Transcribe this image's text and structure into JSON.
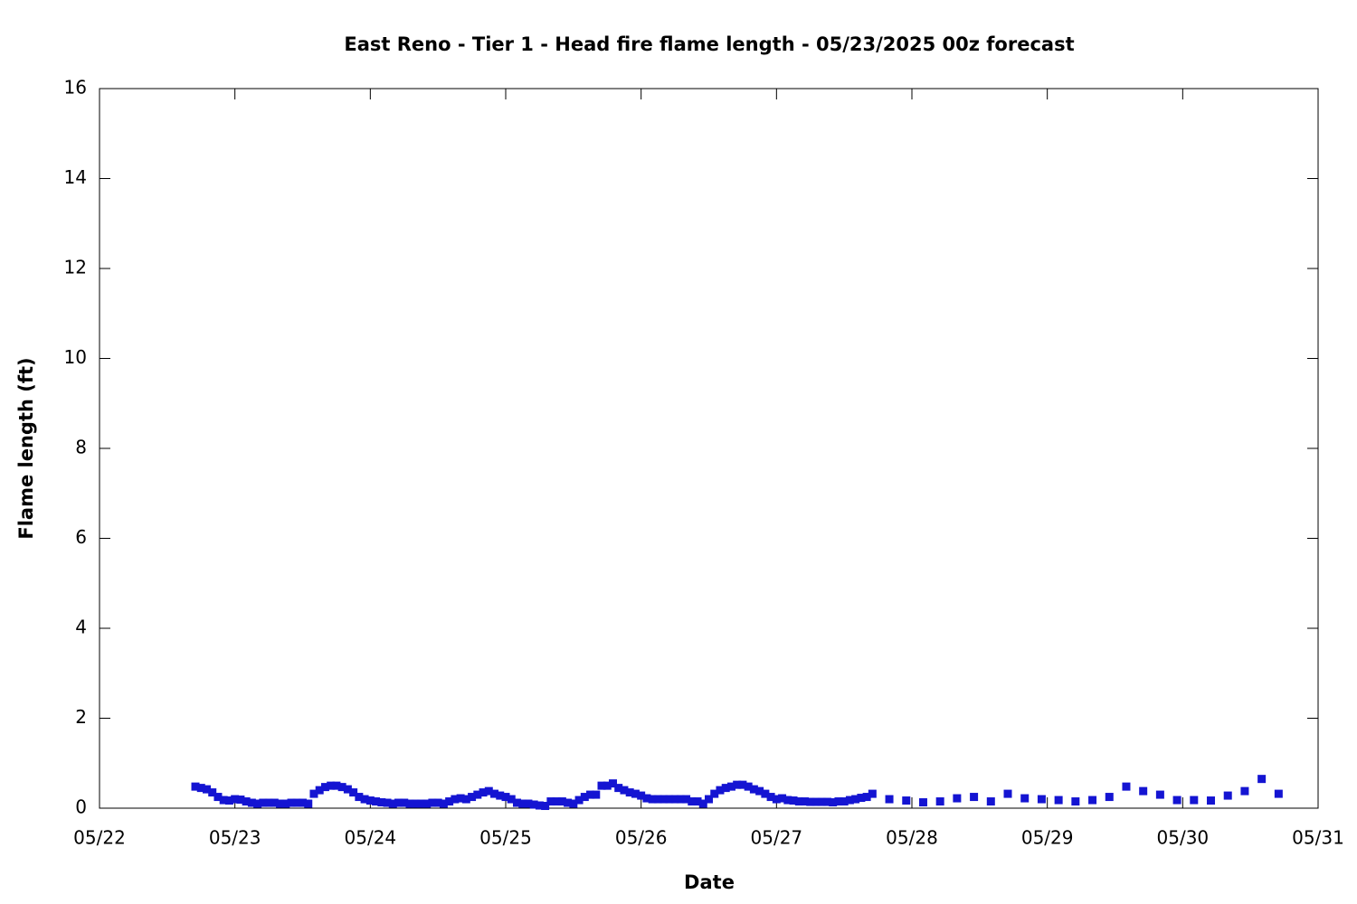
{
  "chart_data": {
    "type": "scatter",
    "title": "East Reno - Tier 1 - Head fire flame length - 05/23/2025 00z forecast",
    "x_label": "Date",
    "y_label": "Flame length (ft)",
    "xlim": [
      22,
      31
    ],
    "xticks": [
      {
        "value": 22,
        "label": "05/22"
      },
      {
        "value": 23,
        "label": "05/23"
      },
      {
        "value": 24,
        "label": "05/24"
      },
      {
        "value": 25,
        "label": "05/25"
      },
      {
        "value": 26,
        "label": "05/26"
      },
      {
        "value": 27,
        "label": "05/27"
      },
      {
        "value": 28,
        "label": "05/28"
      },
      {
        "value": 29,
        "label": "05/29"
      },
      {
        "value": 30,
        "label": "05/30"
      },
      {
        "value": 31,
        "label": "05/31"
      }
    ],
    "ylim": [
      0,
      16
    ],
    "yticks": [
      0,
      2,
      4,
      6,
      8,
      10,
      12,
      14,
      16
    ],
    "series": [
      {
        "color": "#1414d2",
        "x": [
          22.7083,
          22.75,
          22.7917,
          22.8333,
          22.875,
          22.9167,
          22.9583,
          23,
          23.0417,
          23.0833,
          23.125,
          23.1667,
          23.2083,
          23.25,
          23.2917,
          23.3333,
          23.375,
          23.4167,
          23.4583,
          23.5,
          23.5417,
          23.5833,
          23.625,
          23.6667,
          23.7083,
          23.75,
          23.7917,
          23.8333,
          23.875,
          23.9167,
          23.9583,
          24,
          24.0417,
          24.0833,
          24.125,
          24.1667,
          24.2083,
          24.25,
          24.2917,
          24.3333,
          24.375,
          24.4167,
          24.4583,
          24.5,
          24.5417,
          24.5833,
          24.625,
          24.6667,
          24.7083,
          24.75,
          24.7917,
          24.8333,
          24.875,
          24.9167,
          24.9583,
          25,
          25.0417,
          25.0833,
          25.125,
          25.1667,
          25.2083,
          25.25,
          25.2917,
          25.3333,
          25.375,
          25.4167,
          25.4583,
          25.5,
          25.5417,
          25.5833,
          25.625,
          25.6667,
          25.7083,
          25.75,
          25.7917,
          25.8333,
          25.875,
          25.9167,
          25.9583,
          26,
          26.0417,
          26.0833,
          26.125,
          26.1667,
          26.2083,
          26.25,
          26.2917,
          26.3333,
          26.375,
          26.4167,
          26.4583,
          26.5,
          26.5417,
          26.5833,
          26.625,
          26.6667,
          26.7083,
          26.75,
          26.7917,
          26.8333,
          26.875,
          26.9167,
          26.9583,
          27,
          27.0417,
          27.0833,
          27.125,
          27.1667,
          27.2083,
          27.25,
          27.2917,
          27.3333,
          27.375,
          27.4167,
          27.4583,
          27.5,
          27.5417,
          27.5833,
          27.625,
          27.6667,
          27.7083,
          27.8333,
          27.9583,
          28.0833,
          28.2083,
          28.3333,
          28.4583,
          28.5833,
          28.7083,
          28.8333,
          28.9583,
          29.0833,
          29.2083,
          29.3333,
          29.4583,
          29.5833,
          29.7083,
          29.8333,
          29.9583,
          30.0833,
          30.2083,
          30.3333,
          30.4583,
          30.5833,
          30.7083
        ],
        "values": [
          0.48,
          0.45,
          0.42,
          0.35,
          0.25,
          0.18,
          0.17,
          0.2,
          0.19,
          0.15,
          0.12,
          0.1,
          0.12,
          0.12,
          0.12,
          0.1,
          0.1,
          0.12,
          0.12,
          0.12,
          0.1,
          0.32,
          0.4,
          0.47,
          0.5,
          0.5,
          0.47,
          0.42,
          0.35,
          0.25,
          0.2,
          0.17,
          0.15,
          0.13,
          0.12,
          0.1,
          0.12,
          0.12,
          0.1,
          0.1,
          0.1,
          0.1,
          0.12,
          0.12,
          0.1,
          0.15,
          0.2,
          0.22,
          0.2,
          0.25,
          0.3,
          0.35,
          0.38,
          0.32,
          0.28,
          0.25,
          0.2,
          0.12,
          0.1,
          0.1,
          0.08,
          0.06,
          0.05,
          0.15,
          0.15,
          0.15,
          0.12,
          0.1,
          0.18,
          0.25,
          0.3,
          0.3,
          0.5,
          0.5,
          0.55,
          0.45,
          0.4,
          0.35,
          0.32,
          0.28,
          0.22,
          0.2,
          0.2,
          0.2,
          0.2,
          0.2,
          0.2,
          0.2,
          0.15,
          0.15,
          0.1,
          0.2,
          0.32,
          0.4,
          0.45,
          0.48,
          0.52,
          0.52,
          0.48,
          0.42,
          0.38,
          0.32,
          0.25,
          0.2,
          0.22,
          0.18,
          0.17,
          0.15,
          0.15,
          0.14,
          0.14,
          0.14,
          0.14,
          0.13,
          0.15,
          0.15,
          0.18,
          0.2,
          0.23,
          0.25,
          0.32,
          0.2,
          0.17,
          0.13,
          0.15,
          0.22,
          0.25,
          0.15,
          0.32,
          0.22,
          0.2,
          0.18,
          0.15,
          0.18,
          0.25,
          0.48,
          0.38,
          0.3,
          0.18,
          0.18,
          0.17,
          0.28,
          0.38,
          0.65,
          0.32
        ]
      }
    ]
  }
}
